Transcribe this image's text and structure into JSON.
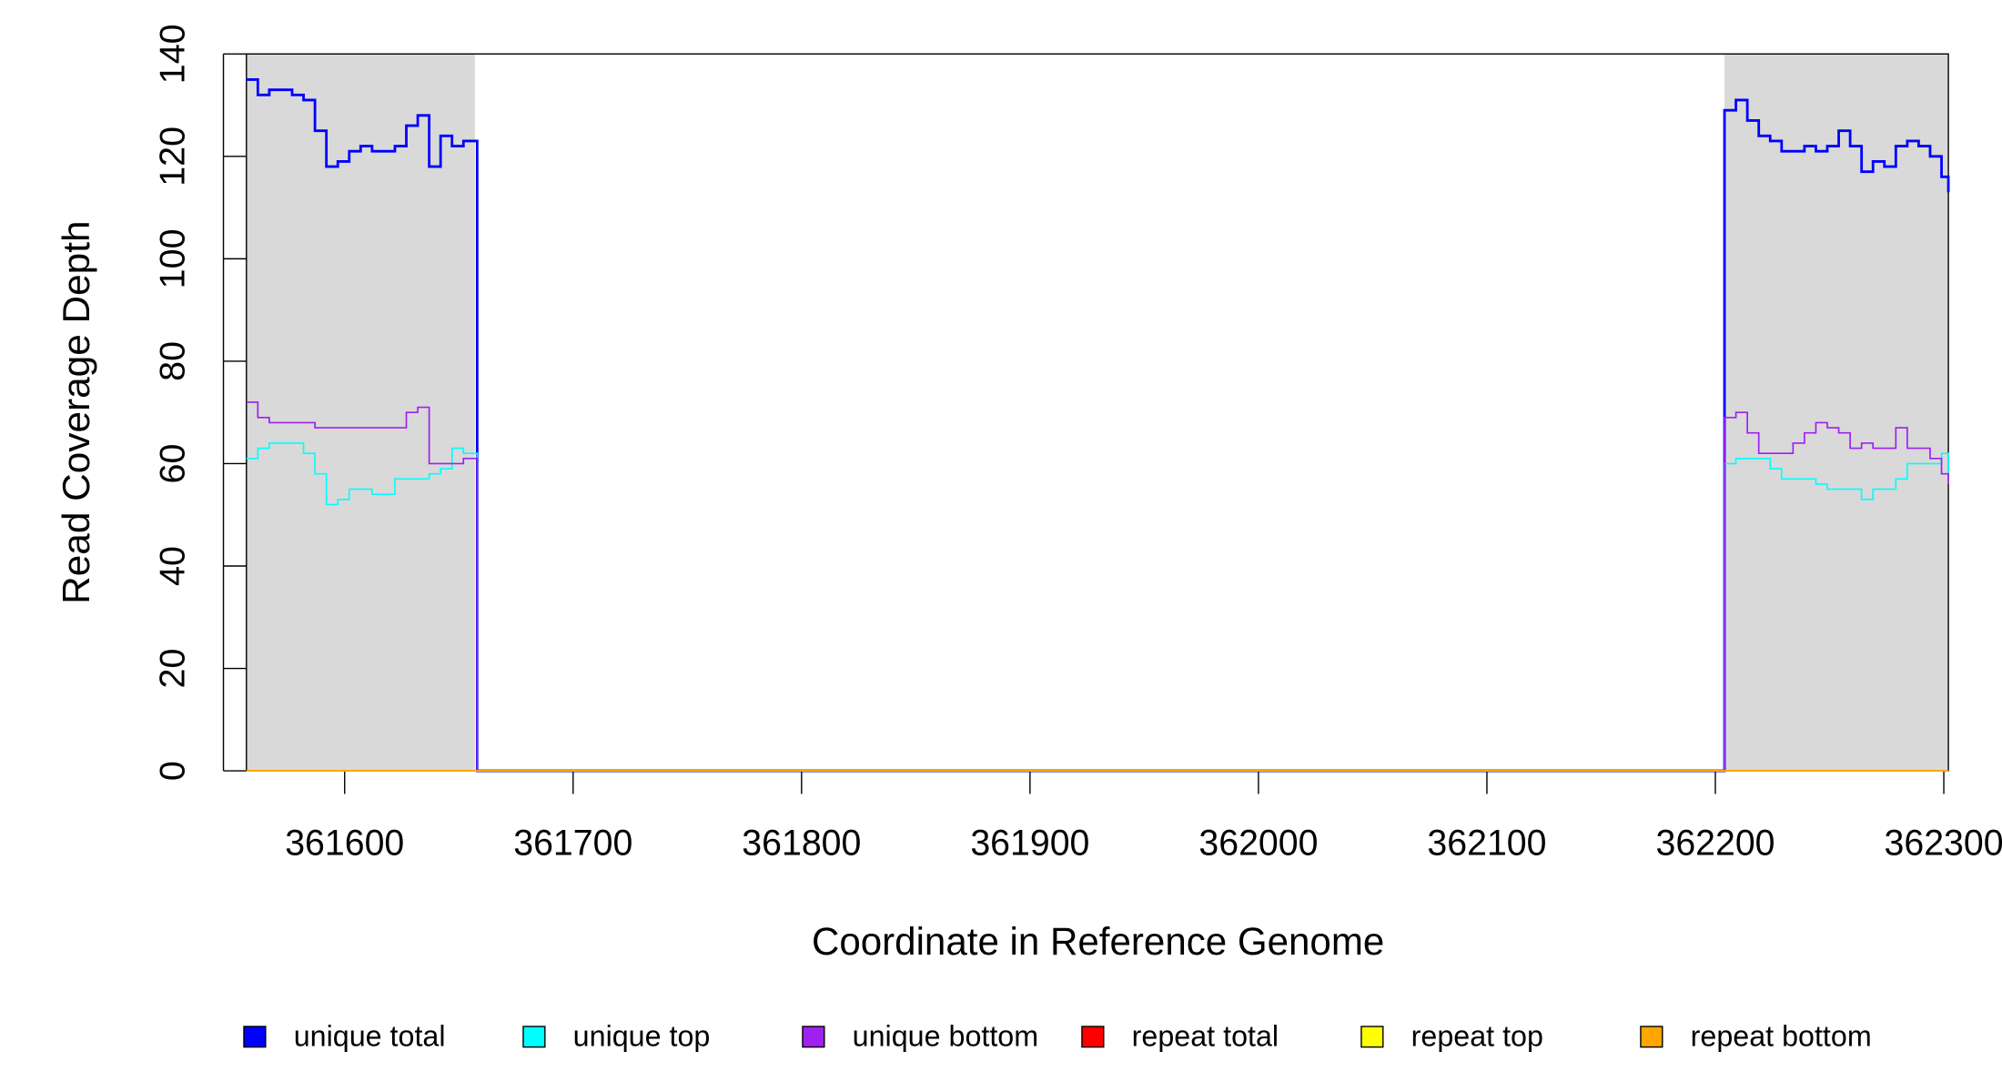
{
  "chart_data": {
    "type": "line",
    "drawstyle": "steps-post",
    "xlabel": "Coordinate in Reference Genome",
    "ylabel": "Read Coverage Depth",
    "x": [
      361557,
      361562,
      361567,
      361572,
      361577,
      361582,
      361587,
      361592,
      361597,
      361602,
      361607,
      361612,
      361617,
      361622,
      361627,
      361632,
      361637,
      361642,
      361647,
      361652,
      361657,
      361658,
      362203,
      362204,
      362209,
      362214,
      362219,
      362224,
      362229,
      362234,
      362239,
      362244,
      362249,
      362254,
      362259,
      362264,
      362269,
      362274,
      362279,
      362284,
      362289,
      362294,
      362299,
      362302
    ],
    "series": [
      {
        "name": "unique total",
        "color": "#0000ff",
        "values": [
          135,
          132,
          133,
          133,
          132,
          131,
          125,
          118,
          119,
          121,
          122,
          121,
          121,
          122,
          126,
          128,
          118,
          124,
          122,
          123,
          123,
          0,
          0,
          129,
          131,
          127,
          124,
          123,
          121,
          121,
          122,
          121,
          122,
          125,
          122,
          117,
          119,
          118,
          122,
          123,
          122,
          120,
          116,
          113
        ]
      },
      {
        "name": "unique top",
        "color": "#00ffff",
        "values": [
          61,
          63,
          64,
          64,
          64,
          62,
          58,
          52,
          53,
          55,
          55,
          54,
          54,
          57,
          57,
          57,
          58,
          59,
          63,
          62,
          62,
          0,
          0,
          60,
          61,
          61,
          61,
          59,
          57,
          57,
          57,
          56,
          55,
          55,
          55,
          53,
          55,
          55,
          57,
          60,
          60,
          60,
          62,
          56
        ]
      },
      {
        "name": "unique bottom",
        "color": "#a020f0",
        "values": [
          72,
          69,
          68,
          68,
          68,
          68,
          67,
          67,
          67,
          67,
          67,
          67,
          67,
          67,
          70,
          71,
          60,
          60,
          60,
          61,
          61,
          0,
          0,
          69,
          70,
          66,
          62,
          62,
          62,
          64,
          66,
          68,
          67,
          66,
          63,
          64,
          63,
          63,
          67,
          63,
          63,
          61,
          58,
          56
        ]
      },
      {
        "name": "repeat total",
        "color": "#ff0000",
        "values": [
          0,
          0,
          0,
          0,
          0,
          0,
          0,
          0,
          0,
          0,
          0,
          0,
          0,
          0,
          0,
          0,
          0,
          0,
          0,
          0,
          0,
          0,
          0,
          0,
          0,
          0,
          0,
          0,
          0,
          0,
          0,
          0,
          0,
          0,
          0,
          0,
          0,
          0,
          0,
          0,
          0,
          0,
          0,
          0
        ]
      },
      {
        "name": "repeat top",
        "color": "#ffff00",
        "values": [
          0,
          0,
          0,
          0,
          0,
          0,
          0,
          0,
          0,
          0,
          0,
          0,
          0,
          0,
          0,
          0,
          0,
          0,
          0,
          0,
          0,
          0,
          0,
          0,
          0,
          0,
          0,
          0,
          0,
          0,
          0,
          0,
          0,
          0,
          0,
          0,
          0,
          0,
          0,
          0,
          0,
          0,
          0,
          0
        ]
      },
      {
        "name": "repeat bottom",
        "color": "#ffa500",
        "values": [
          0,
          0,
          0,
          0,
          0,
          0,
          0,
          0,
          0,
          0,
          0,
          0,
          0,
          0,
          0,
          0,
          0,
          0,
          0,
          0,
          0,
          0,
          0,
          0,
          0,
          0,
          0,
          0,
          0,
          0,
          0,
          0,
          0,
          0,
          0,
          0,
          0,
          0,
          0,
          0,
          0,
          0,
          0,
          0
        ]
      }
    ],
    "highlight_regions": [
      [
        361557,
        361657
      ],
      [
        362204,
        362302
      ]
    ],
    "highlight_color": "#d9d9d9",
    "xlim": [
      361557,
      362302
    ],
    "ylim": [
      0,
      140
    ],
    "xticks": [
      361600,
      361700,
      361800,
      361900,
      362000,
      362100,
      362200,
      362300
    ],
    "yticks": [
      0,
      20,
      40,
      60,
      80,
      100,
      120,
      140
    ],
    "legend": "bottom"
  }
}
